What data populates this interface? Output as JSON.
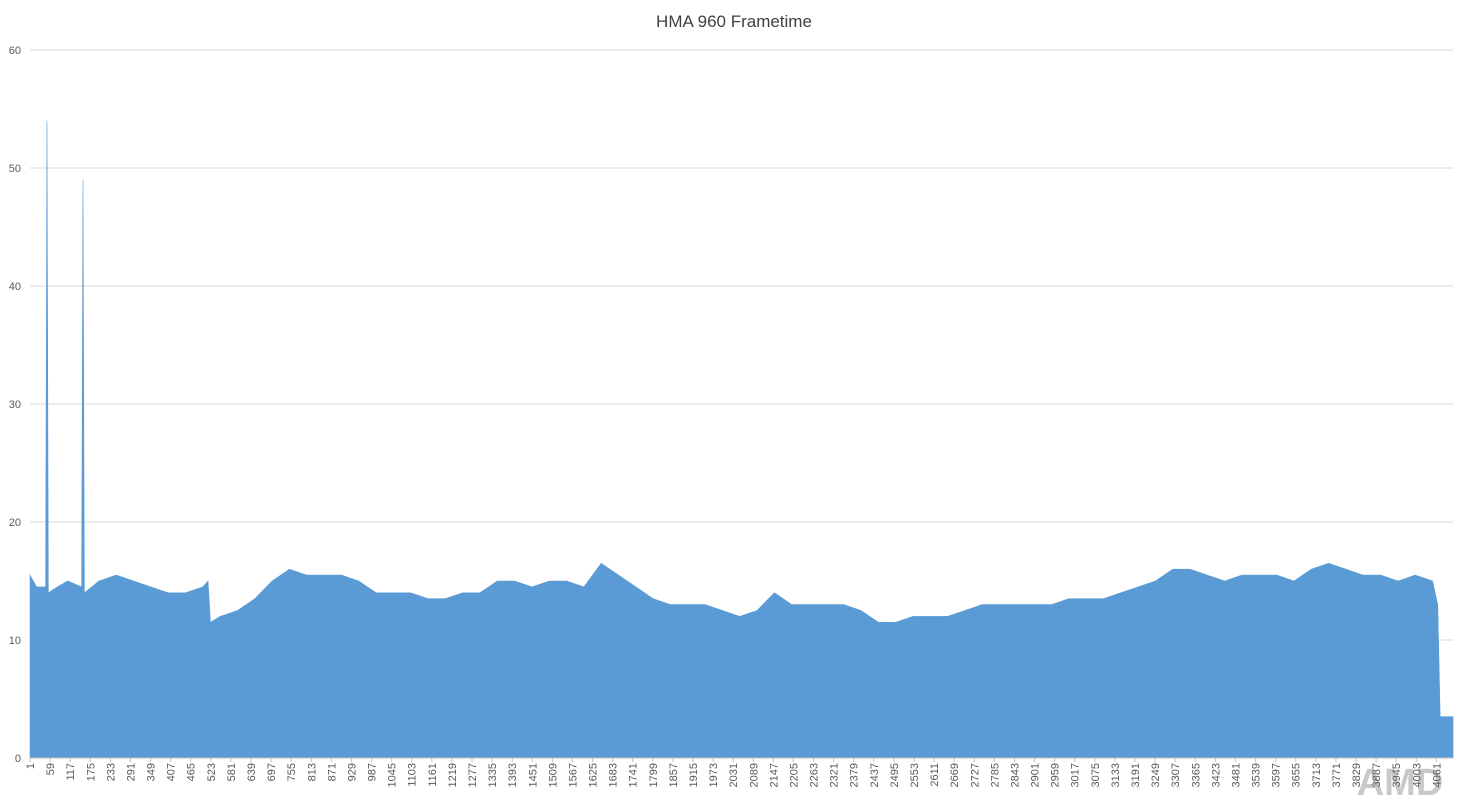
{
  "chart_data": {
    "type": "area",
    "title": "HMA 960 Frametime",
    "x": [
      1,
      20,
      46,
      50,
      54,
      80,
      110,
      150,
      154,
      158,
      200,
      250,
      300,
      350,
      400,
      450,
      500,
      515,
      522,
      550,
      600,
      650,
      700,
      750,
      800,
      850,
      900,
      950,
      1000,
      1050,
      1100,
      1150,
      1200,
      1250,
      1300,
      1350,
      1400,
      1450,
      1500,
      1550,
      1600,
      1650,
      1700,
      1750,
      1800,
      1850,
      1900,
      1950,
      2000,
      2050,
      2100,
      2150,
      2200,
      2250,
      2300,
      2350,
      2400,
      2450,
      2500,
      2550,
      2600,
      2650,
      2700,
      2750,
      2800,
      2850,
      2900,
      2950,
      3000,
      3050,
      3100,
      3150,
      3200,
      3250,
      3300,
      3350,
      3400,
      3450,
      3500,
      3550,
      3600,
      3650,
      3700,
      3750,
      3800,
      3850,
      3900,
      3950,
      4000,
      4050,
      4065,
      4072,
      4109
    ],
    "values": [
      15.5,
      14.5,
      14.5,
      54,
      14,
      14.5,
      15,
      14.5,
      49,
      14,
      15,
      15.5,
      15,
      14.5,
      14,
      14,
      14.5,
      15,
      11.5,
      12,
      12.5,
      13.5,
      15,
      16,
      15.5,
      15.5,
      15.5,
      15,
      14,
      14,
      14,
      13.5,
      13.5,
      14,
      14,
      15,
      15,
      14.5,
      15,
      15,
      14.5,
      16.5,
      15.5,
      14.5,
      13.5,
      13,
      13,
      13,
      12.5,
      12,
      12.5,
      14,
      13,
      13,
      13,
      13,
      12.5,
      11.5,
      11.5,
      12,
      12,
      12,
      12.5,
      13,
      13,
      13,
      13,
      13,
      13.5,
      13.5,
      13.5,
      14,
      14.5,
      15,
      16,
      16,
      15.5,
      15,
      15.5,
      15.5,
      15.5,
      15,
      16,
      16.5,
      16,
      15.5,
      15.5,
      15,
      15.5,
      15,
      13,
      3.5,
      3.5
    ],
    "color": "#5b9bd5",
    "xlim": [
      1,
      4109
    ],
    "xticks": [
      1,
      59,
      117,
      175,
      233,
      291,
      349,
      407,
      465,
      523,
      581,
      639,
      697,
      755,
      813,
      871,
      929,
      987,
      1045,
      1103,
      1161,
      1219,
      1277,
      1335,
      1393,
      1451,
      1509,
      1567,
      1625,
      1683,
      1741,
      1799,
      1857,
      1915,
      1973,
      2031,
      2089,
      2147,
      2205,
      2263,
      2321,
      2379,
      2437,
      2495,
      2553,
      2611,
      2669,
      2727,
      2785,
      2843,
      2901,
      2959,
      3017,
      3075,
      3133,
      3191,
      3249,
      3307,
      3365,
      3423,
      3481,
      3539,
      3597,
      3655,
      3713,
      3771,
      3829,
      3887,
      3945,
      4003,
      4061
    ],
    "ylim": [
      0,
      60
    ],
    "yticks": [
      0,
      10,
      20,
      30,
      40,
      50,
      60
    ],
    "grid": true
  },
  "watermark": "AMD"
}
